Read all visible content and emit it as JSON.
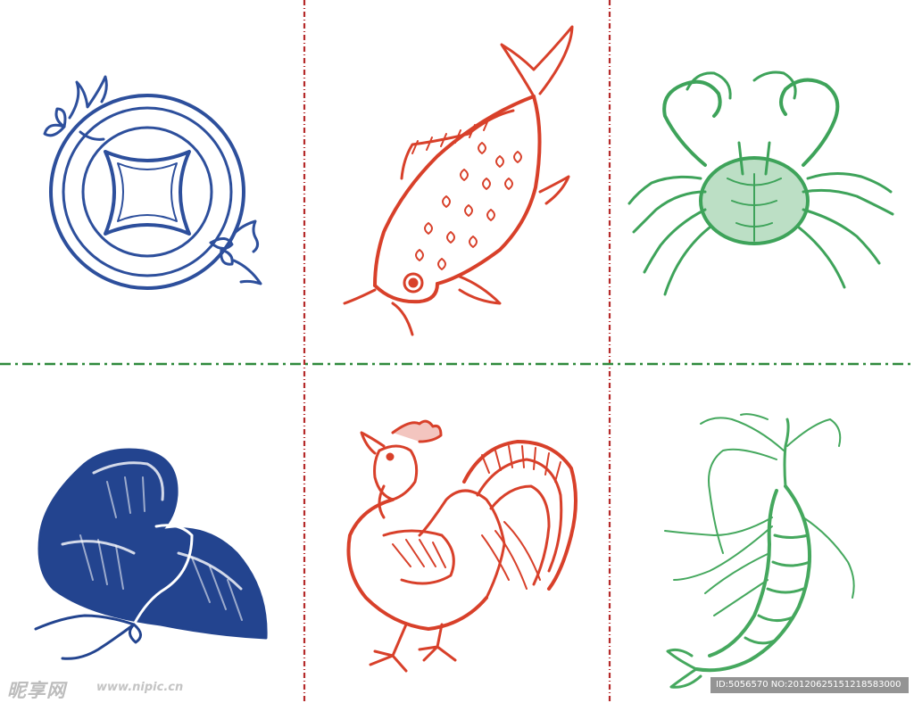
{
  "cells": [
    {
      "subject": "coin",
      "color": "#2d4f9c"
    },
    {
      "subject": "carp",
      "color": "#d8402a"
    },
    {
      "subject": "crab",
      "color": "#3ea35a"
    },
    {
      "subject": "gourd",
      "color": "#23448f"
    },
    {
      "subject": "rooster",
      "color": "#d8402a"
    },
    {
      "subject": "shrimp",
      "color": "#45a85e"
    }
  ],
  "dividers": {
    "vertical_color": "#b52a2a",
    "horizontal_color": "#2f8a3c"
  },
  "watermark": {
    "logo": "昵享网",
    "url": "www.nipic.cn",
    "id_text": "ID:5056570 NO:20120625151218583000"
  }
}
